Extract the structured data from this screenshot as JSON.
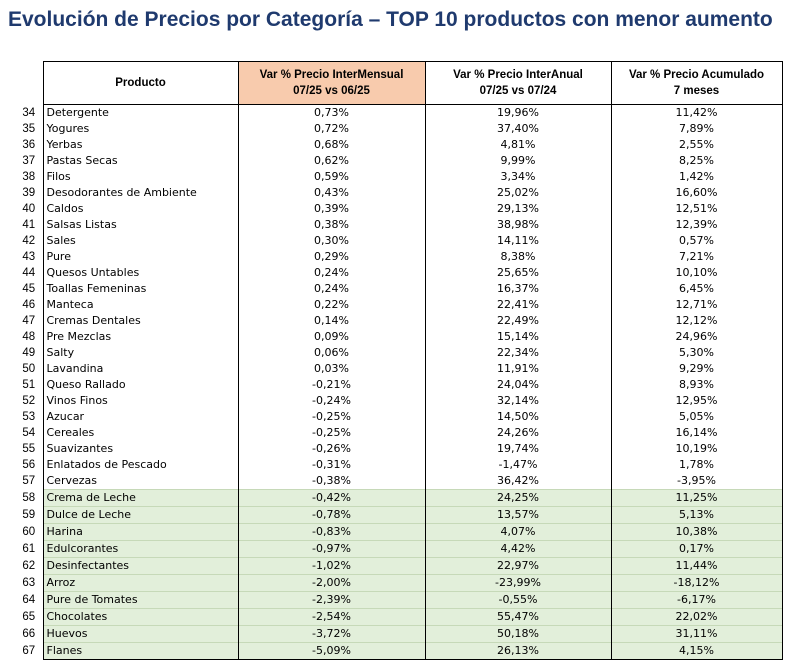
{
  "title": "Evolución de Precios por Categoría – TOP 10 productos con menor aumento",
  "headers": {
    "producto": "Producto",
    "intermensual_line1": "Var % Precio InterMensual",
    "intermensual_line2": "07/25 vs 06/25",
    "interanual_line1": "Var % Precio InterAnual",
    "interanual_line2": "07/25 vs 07/24",
    "acumulado_line1": "Var % Precio Acumulado",
    "acumulado_line2": "7 meses"
  },
  "colors": {
    "title": "#1f3a6e",
    "highlight_header": "#f8cbad",
    "top10_rows": "#e2efda"
  },
  "rows": [
    {
      "n": "34",
      "producto": "Detergente",
      "mensual": "0,73%",
      "anual": "19,96%",
      "acum": "11,42%",
      "top10": false
    },
    {
      "n": "35",
      "producto": "Yogures",
      "mensual": "0,72%",
      "anual": "37,40%",
      "acum": "7,89%",
      "top10": false
    },
    {
      "n": "36",
      "producto": "Yerbas",
      "mensual": "0,68%",
      "anual": "4,81%",
      "acum": "2,55%",
      "top10": false
    },
    {
      "n": "37",
      "producto": "Pastas Secas",
      "mensual": "0,62%",
      "anual": "9,99%",
      "acum": "8,25%",
      "top10": false
    },
    {
      "n": "38",
      "producto": "Filos",
      "mensual": "0,59%",
      "anual": "3,34%",
      "acum": "1,42%",
      "top10": false
    },
    {
      "n": "39",
      "producto": "Desodorantes de Ambiente",
      "mensual": "0,43%",
      "anual": "25,02%",
      "acum": "16,60%",
      "top10": false
    },
    {
      "n": "40",
      "producto": "Caldos",
      "mensual": "0,39%",
      "anual": "29,13%",
      "acum": "12,51%",
      "top10": false
    },
    {
      "n": "41",
      "producto": "Salsas Listas",
      "mensual": "0,38%",
      "anual": "38,98%",
      "acum": "12,39%",
      "top10": false
    },
    {
      "n": "42",
      "producto": "Sales",
      "mensual": "0,30%",
      "anual": "14,11%",
      "acum": "0,57%",
      "top10": false
    },
    {
      "n": "43",
      "producto": "Pure",
      "mensual": "0,29%",
      "anual": "8,38%",
      "acum": "7,21%",
      "top10": false
    },
    {
      "n": "44",
      "producto": "Quesos Untables",
      "mensual": "0,24%",
      "anual": "25,65%",
      "acum": "10,10%",
      "top10": false
    },
    {
      "n": "45",
      "producto": "Toallas Femeninas",
      "mensual": "0,24%",
      "anual": "16,37%",
      "acum": "6,45%",
      "top10": false
    },
    {
      "n": "46",
      "producto": "Manteca",
      "mensual": "0,22%",
      "anual": "22,41%",
      "acum": "12,71%",
      "top10": false
    },
    {
      "n": "47",
      "producto": "Cremas Dentales",
      "mensual": "0,14%",
      "anual": "22,49%",
      "acum": "12,12%",
      "top10": false
    },
    {
      "n": "48",
      "producto": "Pre Mezclas",
      "mensual": "0,09%",
      "anual": "15,14%",
      "acum": "24,96%",
      "top10": false
    },
    {
      "n": "49",
      "producto": "Salty",
      "mensual": "0,06%",
      "anual": "22,34%",
      "acum": "5,30%",
      "top10": false
    },
    {
      "n": "50",
      "producto": "Lavandina",
      "mensual": "0,03%",
      "anual": "11,91%",
      "acum": "9,29%",
      "top10": false
    },
    {
      "n": "51",
      "producto": "Queso Rallado",
      "mensual": "-0,21%",
      "anual": "24,04%",
      "acum": "8,93%",
      "top10": false
    },
    {
      "n": "52",
      "producto": "Vinos Finos",
      "mensual": "-0,24%",
      "anual": "32,14%",
      "acum": "12,95%",
      "top10": false
    },
    {
      "n": "53",
      "producto": "Azucar",
      "mensual": "-0,25%",
      "anual": "14,50%",
      "acum": "5,05%",
      "top10": false
    },
    {
      "n": "54",
      "producto": "Cereales",
      "mensual": "-0,25%",
      "anual": "24,26%",
      "acum": "16,14%",
      "top10": false
    },
    {
      "n": "55",
      "producto": "Suavizantes",
      "mensual": "-0,26%",
      "anual": "19,74%",
      "acum": "10,19%",
      "top10": false
    },
    {
      "n": "56",
      "producto": "Enlatados de Pescado",
      "mensual": "-0,31%",
      "anual": "-1,47%",
      "acum": "1,78%",
      "top10": false
    },
    {
      "n": "57",
      "producto": "Cervezas",
      "mensual": "-0,38%",
      "anual": "36,42%",
      "acum": "-3,95%",
      "top10": false
    },
    {
      "n": "58",
      "producto": "Crema de Leche",
      "mensual": "-0,42%",
      "anual": "24,25%",
      "acum": "11,25%",
      "top10": true
    },
    {
      "n": "59",
      "producto": "Dulce de Leche",
      "mensual": "-0,78%",
      "anual": "13,57%",
      "acum": "5,13%",
      "top10": true
    },
    {
      "n": "60",
      "producto": "Harina",
      "mensual": "-0,83%",
      "anual": "4,07%",
      "acum": "10,38%",
      "top10": true
    },
    {
      "n": "61",
      "producto": "Edulcorantes",
      "mensual": "-0,97%",
      "anual": "4,42%",
      "acum": "0,17%",
      "top10": true
    },
    {
      "n": "62",
      "producto": "Desinfectantes",
      "mensual": "-1,02%",
      "anual": "22,97%",
      "acum": "11,44%",
      "top10": true
    },
    {
      "n": "63",
      "producto": "Arroz",
      "mensual": "-2,00%",
      "anual": "-23,99%",
      "acum": "-18,12%",
      "top10": true
    },
    {
      "n": "64",
      "producto": "Pure de Tomates",
      "mensual": "-2,39%",
      "anual": "-0,55%",
      "acum": "-6,17%",
      "top10": true
    },
    {
      "n": "65",
      "producto": "Chocolates",
      "mensual": "-2,54%",
      "anual": "55,47%",
      "acum": "22,02%",
      "top10": true
    },
    {
      "n": "66",
      "producto": "Huevos",
      "mensual": "-3,72%",
      "anual": "50,18%",
      "acum": "31,11%",
      "top10": true
    },
    {
      "n": "67",
      "producto": "Flanes",
      "mensual": "-5,09%",
      "anual": "26,13%",
      "acum": "4,15%",
      "top10": true
    }
  ]
}
